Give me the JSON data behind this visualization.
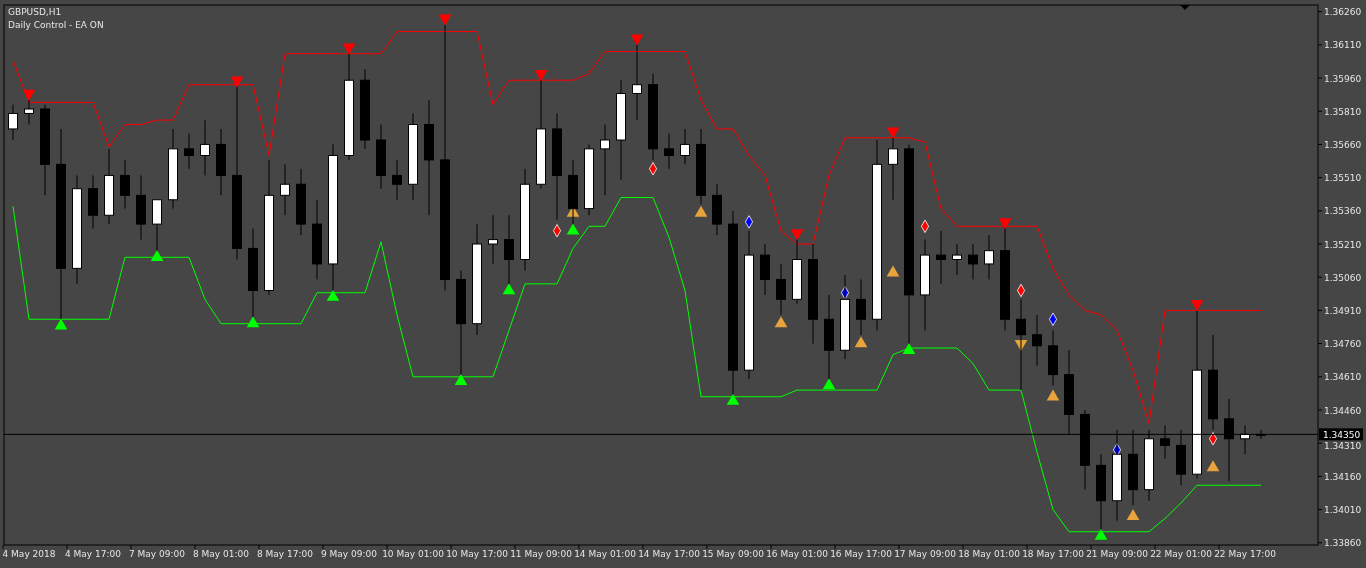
{
  "chart_data": {
    "type": "candlestick",
    "title": "GBPUSD,H1",
    "subtitle": "Daily Control - EA ON",
    "categories": [
      null,
      "4 May 2018",
      null,
      null,
      null,
      "4 May 17:00",
      null,
      null,
      null,
      "7 May 09:00",
      null,
      null,
      null,
      "8 May 01:00",
      null,
      null,
      null,
      "8 May 17:00",
      null,
      null,
      null,
      "9 May 09:00",
      null,
      null,
      null,
      "10 May 01:00",
      null,
      null,
      null,
      "10 May 17:00",
      null,
      null,
      null,
      "11 May 09:00",
      null,
      null,
      null,
      "14 May 01:00",
      null,
      null,
      null,
      "14 May 17:00",
      null,
      null,
      null,
      "15 May 09:00",
      null,
      null,
      null,
      "16 May 01:00",
      null,
      null,
      null,
      "16 May 17:00",
      null,
      null,
      null,
      "17 May 09:00",
      null,
      null,
      null,
      "18 May 01:00",
      null,
      null,
      null,
      "18 May 17:00",
      null,
      null,
      null,
      "21 May 09:00",
      null,
      null,
      null,
      "22 May 01:00",
      null,
      null,
      null,
      "22 May 17:00",
      null
    ],
    "ohlc": [
      [
        1.3573,
        1.3584,
        1.3568,
        1.358
      ],
      [
        1.358,
        1.3586,
        1.3575,
        1.3582
      ],
      [
        1.3582,
        1.3584,
        1.3543,
        1.3557
      ],
      [
        1.3557,
        1.3573,
        1.3487,
        1.351
      ],
      [
        1.351,
        1.3552,
        1.3503,
        1.3546
      ],
      [
        1.3546,
        1.3552,
        1.3528,
        1.3534
      ],
      [
        1.3534,
        1.3564,
        1.353,
        1.3552
      ],
      [
        1.3552,
        1.3559,
        1.3537,
        1.3543
      ],
      [
        1.3543,
        1.3552,
        1.3523,
        1.353
      ],
      [
        1.353,
        1.3541,
        1.3518,
        1.3541
      ],
      [
        1.3541,
        1.3573,
        1.3537,
        1.3564
      ],
      [
        1.3564,
        1.3571,
        1.3555,
        1.3561
      ],
      [
        1.3561,
        1.3577,
        1.3552,
        1.3566
      ],
      [
        1.3566,
        1.3573,
        1.3543,
        1.3552
      ],
      [
        1.3552,
        1.3592,
        1.3514,
        1.3519
      ],
      [
        1.3519,
        1.3528,
        1.3488,
        1.35
      ],
      [
        1.35,
        1.3559,
        1.3498,
        1.3543
      ],
      [
        1.3543,
        1.3557,
        1.3534,
        1.3548
      ],
      [
        1.3548,
        1.3555,
        1.3525,
        1.353
      ],
      [
        1.353,
        1.3541,
        1.3505,
        1.3512
      ],
      [
        1.3512,
        1.3566,
        1.35,
        1.3561
      ],
      [
        1.3561,
        1.3607,
        1.3559,
        1.3595
      ],
      [
        1.3595,
        1.36,
        1.3564,
        1.3568
      ],
      [
        1.3568,
        1.3575,
        1.3546,
        1.3552
      ],
      [
        1.3552,
        1.3559,
        1.3541,
        1.3548
      ],
      [
        1.3548,
        1.358,
        1.3541,
        1.3575
      ],
      [
        1.3575,
        1.3586,
        1.3534,
        1.3559
      ],
      [
        1.3559,
        1.362,
        1.35,
        1.3505
      ],
      [
        1.3505,
        1.3509,
        1.3462,
        1.3485
      ],
      [
        1.3485,
        1.353,
        1.348,
        1.3521
      ],
      [
        1.3521,
        1.3534,
        1.3512,
        1.3523
      ],
      [
        1.3523,
        1.3534,
        1.3503,
        1.3514
      ],
      [
        1.3514,
        1.3555,
        1.3509,
        1.3548
      ],
      [
        1.3548,
        1.3595,
        1.3546,
        1.3573
      ],
      [
        1.3573,
        1.358,
        1.3532,
        1.3552
      ],
      [
        1.3552,
        1.3559,
        1.353,
        1.3537
      ],
      [
        1.3537,
        1.3566,
        1.3534,
        1.3564
      ],
      [
        1.3564,
        1.3575,
        1.3543,
        1.3568
      ],
      [
        1.3568,
        1.3595,
        1.355,
        1.3589
      ],
      [
        1.3589,
        1.3611,
        1.3577,
        1.3593
      ],
      [
        1.3593,
        1.3598,
        1.3559,
        1.3564
      ],
      [
        1.3564,
        1.3571,
        1.3555,
        1.3561
      ],
      [
        1.3561,
        1.3573,
        1.3557,
        1.3566
      ],
      [
        1.3566,
        1.3573,
        1.3539,
        1.3543
      ],
      [
        1.3543,
        1.3548,
        1.3525,
        1.353
      ],
      [
        1.353,
        1.3536,
        1.3453,
        1.3464
      ],
      [
        1.3464,
        1.3527,
        1.346,
        1.3516
      ],
      [
        1.3516,
        1.3521,
        1.3498,
        1.3505
      ],
      [
        1.3505,
        1.3512,
        1.3489,
        1.3496
      ],
      [
        1.3496,
        1.3523,
        1.3494,
        1.3514
      ],
      [
        1.3514,
        1.3521,
        1.3476,
        1.3487
      ],
      [
        1.3487,
        1.3498,
        1.346,
        1.3473
      ],
      [
        1.3473,
        1.3507,
        1.3469,
        1.3496
      ],
      [
        1.3496,
        1.3505,
        1.348,
        1.3487
      ],
      [
        1.3487,
        1.3568,
        1.3482,
        1.3557
      ],
      [
        1.3557,
        1.3569,
        1.3541,
        1.3564
      ],
      [
        1.3564,
        1.3566,
        1.3476,
        1.3498
      ],
      [
        1.3498,
        1.3523,
        1.3482,
        1.3516
      ],
      [
        1.3516,
        1.3527,
        1.3503,
        1.3514
      ],
      [
        1.3514,
        1.3521,
        1.3507,
        1.3516
      ],
      [
        1.3516,
        1.3521,
        1.3505,
        1.3512
      ],
      [
        1.3512,
        1.3525,
        1.3505,
        1.3518
      ],
      [
        1.3518,
        1.3528,
        1.3482,
        1.3487
      ],
      [
        1.3487,
        1.3496,
        1.3455,
        1.348
      ],
      [
        1.348,
        1.3489,
        1.3466,
        1.3475
      ],
      [
        1.3475,
        1.3482,
        1.3457,
        1.3462
      ],
      [
        1.3462,
        1.3473,
        1.3435,
        1.3444
      ],
      [
        1.3444,
        1.3446,
        1.341,
        1.3421
      ],
      [
        1.3421,
        1.3426,
        1.3392,
        1.3405
      ],
      [
        1.3405,
        1.3437,
        1.3396,
        1.3426
      ],
      [
        1.3426,
        1.3437,
        1.3403,
        1.341
      ],
      [
        1.341,
        1.3437,
        1.3405,
        1.3433
      ],
      [
        1.3433,
        1.3439,
        1.3424,
        1.343
      ],
      [
        1.343,
        1.3437,
        1.3412,
        1.3417
      ],
      [
        1.3417,
        1.3491,
        1.3415,
        1.3464
      ],
      [
        1.3464,
        1.348,
        1.3437,
        1.3442
      ],
      [
        1.3442,
        1.3451,
        1.3414,
        1.3433
      ],
      [
        1.3433,
        1.3439,
        1.3426,
        1.3435
      ],
      [
        1.3435,
        1.3437,
        1.3433,
        1.3435
      ]
    ],
    "series": [
      {
        "type": "line",
        "color": "#ff0000",
        "values": [
          1.3604,
          1.3585,
          1.3585,
          1.3585,
          1.3585,
          1.3585,
          1.3565,
          1.3575,
          1.3575,
          1.3577,
          1.3577,
          1.3593,
          1.3593,
          1.3593,
          1.3593,
          1.3593,
          1.3561,
          1.3607,
          1.3607,
          1.3607,
          1.3607,
          1.3607,
          1.3607,
          1.3607,
          1.3617,
          1.3617,
          1.3617,
          1.3617,
          1.3617,
          1.3617,
          1.3584,
          1.3595,
          1.3595,
          1.3595,
          1.3595,
          1.3595,
          1.3598,
          1.3608,
          1.3608,
          1.3608,
          1.3608,
          1.3608,
          1.3608,
          1.3586,
          1.3573,
          1.3573,
          1.3561,
          1.3552,
          1.3527,
          1.3521,
          1.3521,
          1.3552,
          1.3569,
          1.3569,
          1.3569,
          1.3569,
          1.3569,
          1.3567,
          1.3537,
          1.3529,
          1.3529,
          1.3529,
          1.3529,
          1.3529,
          1.3529,
          1.351,
          1.3498,
          1.3491,
          1.3489,
          1.3482,
          1.3464,
          1.344,
          1.3491,
          1.3491,
          1.3491,
          1.3491,
          1.3491,
          1.3491,
          1.3491
        ]
      },
      {
        "type": "line",
        "color": "#00ff00",
        "values": [
          1.3538,
          1.3487,
          1.3487,
          1.3487,
          1.3487,
          1.3487,
          1.3487,
          1.3515,
          1.3515,
          1.3515,
          1.3515,
          1.3515,
          1.3496,
          1.3485,
          1.3485,
          1.3485,
          1.3485,
          1.3485,
          1.3485,
          1.3499,
          1.3499,
          1.3499,
          1.3499,
          1.3522,
          1.3489,
          1.3461,
          1.3461,
          1.3461,
          1.3461,
          1.3461,
          1.3461,
          1.3482,
          1.3503,
          1.3503,
          1.3503,
          1.3519,
          1.3529,
          1.3529,
          1.3542,
          1.3542,
          1.3542,
          1.3524,
          1.35,
          1.3452,
          1.3452,
          1.3452,
          1.3452,
          1.3452,
          1.3452,
          1.3455,
          1.3455,
          1.3455,
          1.3455,
          1.3455,
          1.3455,
          1.3471,
          1.3474,
          1.3474,
          1.3474,
          1.3474,
          1.3467,
          1.3455,
          1.3455,
          1.3455,
          1.3427,
          1.3401,
          1.3391,
          1.3391,
          1.3391,
          1.3391,
          1.3391,
          1.3391,
          1.3397,
          1.3404,
          1.3412,
          1.3412,
          1.3412,
          1.3412,
          1.3412
        ]
      },
      {
        "type": "scatter",
        "color": "#ff0000",
        "marker": "triangle",
        "values": [
          null,
          1.3589,
          null,
          null,
          null,
          null,
          null,
          null,
          null,
          null,
          null,
          null,
          null,
          null,
          1.3595,
          null,
          null,
          null,
          null,
          null,
          null,
          1.361,
          null,
          null,
          null,
          null,
          null,
          1.3623,
          null,
          null,
          null,
          null,
          null,
          1.3598,
          null,
          null,
          null,
          null,
          null,
          1.3614,
          null,
          null,
          null,
          null,
          null,
          null,
          null,
          null,
          null,
          1.3526,
          null,
          null,
          null,
          null,
          null,
          1.3572,
          null,
          null,
          null,
          null,
          null,
          null,
          1.3531,
          null,
          null,
          null,
          null,
          null,
          null,
          null,
          null,
          null,
          null,
          null,
          1.3494,
          null,
          null,
          null,
          null
        ]
      },
      {
        "type": "scatter",
        "color": "#00ff00",
        "marker": "triangle",
        "values": [
          null,
          null,
          null,
          1.3484,
          null,
          null,
          null,
          null,
          null,
          1.3515,
          null,
          null,
          null,
          null,
          null,
          1.3485,
          null,
          null,
          null,
          null,
          1.3497,
          null,
          null,
          null,
          null,
          null,
          null,
          null,
          1.3459,
          null,
          null,
          1.35,
          null,
          null,
          null,
          1.3527,
          null,
          null,
          null,
          null,
          null,
          null,
          null,
          null,
          null,
          1.345,
          null,
          null,
          null,
          null,
          null,
          1.3457,
          null,
          null,
          null,
          null,
          1.3473,
          null,
          null,
          null,
          null,
          null,
          null,
          null,
          null,
          null,
          null,
          null,
          1.3389,
          null,
          null,
          null,
          null,
          null,
          null,
          null,
          null,
          null,
          null
        ]
      },
      {
        "type": "scatter",
        "color": "#e8a33a",
        "marker": "triangle",
        "values": [
          null,
          null,
          null,
          null,
          null,
          null,
          null,
          null,
          null,
          null,
          null,
          null,
          null,
          null,
          null,
          null,
          null,
          null,
          null,
          null,
          null,
          null,
          null,
          null,
          null,
          null,
          null,
          null,
          null,
          null,
          null,
          null,
          null,
          null,
          null,
          1.3535,
          null,
          null,
          null,
          null,
          null,
          null,
          null,
          1.3535,
          null,
          null,
          null,
          null,
          1.3485,
          null,
          null,
          null,
          null,
          1.3476,
          null,
          1.3508,
          null,
          null,
          null,
          null,
          null,
          null,
          null,
          1.3476,
          null,
          1.3452,
          null,
          null,
          null,
          null,
          1.3398,
          null,
          null,
          null,
          null,
          1.342,
          null,
          null,
          null
        ]
      },
      {
        "type": "scatter",
        "color": "#ff0000",
        "marker": "diamond",
        "values": [
          null,
          null,
          null,
          null,
          null,
          null,
          null,
          null,
          null,
          null,
          null,
          null,
          null,
          null,
          null,
          null,
          null,
          null,
          null,
          null,
          null,
          null,
          null,
          null,
          null,
          null,
          null,
          null,
          null,
          null,
          null,
          null,
          null,
          null,
          1.3527,
          null,
          null,
          null,
          null,
          null,
          1.3555,
          null,
          null,
          null,
          null,
          null,
          null,
          null,
          null,
          null,
          null,
          null,
          null,
          null,
          null,
          null,
          null,
          1.3529,
          null,
          null,
          null,
          null,
          null,
          1.35,
          null,
          null,
          null,
          null,
          null,
          null,
          null,
          null,
          null,
          null,
          null,
          1.3433,
          null,
          null,
          null
        ]
      },
      {
        "type": "scatter",
        "color": "#0000ff",
        "marker": "diamond",
        "values": [
          null,
          null,
          null,
          null,
          null,
          null,
          null,
          null,
          null,
          null,
          null,
          null,
          null,
          null,
          null,
          null,
          null,
          null,
          null,
          null,
          null,
          null,
          null,
          null,
          null,
          null,
          null,
          null,
          null,
          null,
          null,
          null,
          null,
          null,
          null,
          null,
          null,
          null,
          null,
          null,
          null,
          null,
          null,
          null,
          null,
          null,
          1.3531,
          null,
          null,
          null,
          null,
          null,
          1.3499,
          null,
          null,
          null,
          null,
          null,
          null,
          null,
          null,
          null,
          null,
          null,
          null,
          1.3487,
          null,
          null,
          null,
          1.3428,
          null,
          null,
          null,
          null,
          null,
          null,
          null,
          null,
          null
        ]
      }
    ],
    "ylim": [
      1.3385,
      1.3629
    ],
    "yticks": [
      {
        "value": 1.3626,
        "label": "1.36260"
      },
      {
        "value": 1.3611,
        "label": "1.36110"
      },
      {
        "value": 1.3596,
        "label": "1.35960"
      },
      {
        "value": 1.3581,
        "label": "1.35810"
      },
      {
        "value": 1.3566,
        "label": "1.35660"
      },
      {
        "value": 1.3551,
        "label": "1.35510"
      },
      {
        "value": 1.3536,
        "label": "1.35360"
      },
      {
        "value": 1.3521,
        "label": "1.35210"
      },
      {
        "value": 1.3506,
        "label": "1.35060"
      },
      {
        "value": 1.3491,
        "label": "1.34910"
      },
      {
        "value": 1.3476,
        "label": "1.34760"
      },
      {
        "value": 1.3461,
        "label": "1.34610"
      },
      {
        "value": 1.3446,
        "label": "1.34460"
      },
      {
        "value": 1.3431,
        "label": "1.34310"
      },
      {
        "value": 1.3416,
        "label": "1.34160"
      },
      {
        "value": 1.3401,
        "label": "1.34010"
      },
      {
        "value": 1.3386,
        "label": "1.33860"
      }
    ],
    "ref_lines": [
      {
        "axis": "y",
        "value": 1.3435,
        "label": "1.34350",
        "color": "#000000"
      }
    ],
    "grid": false
  }
}
